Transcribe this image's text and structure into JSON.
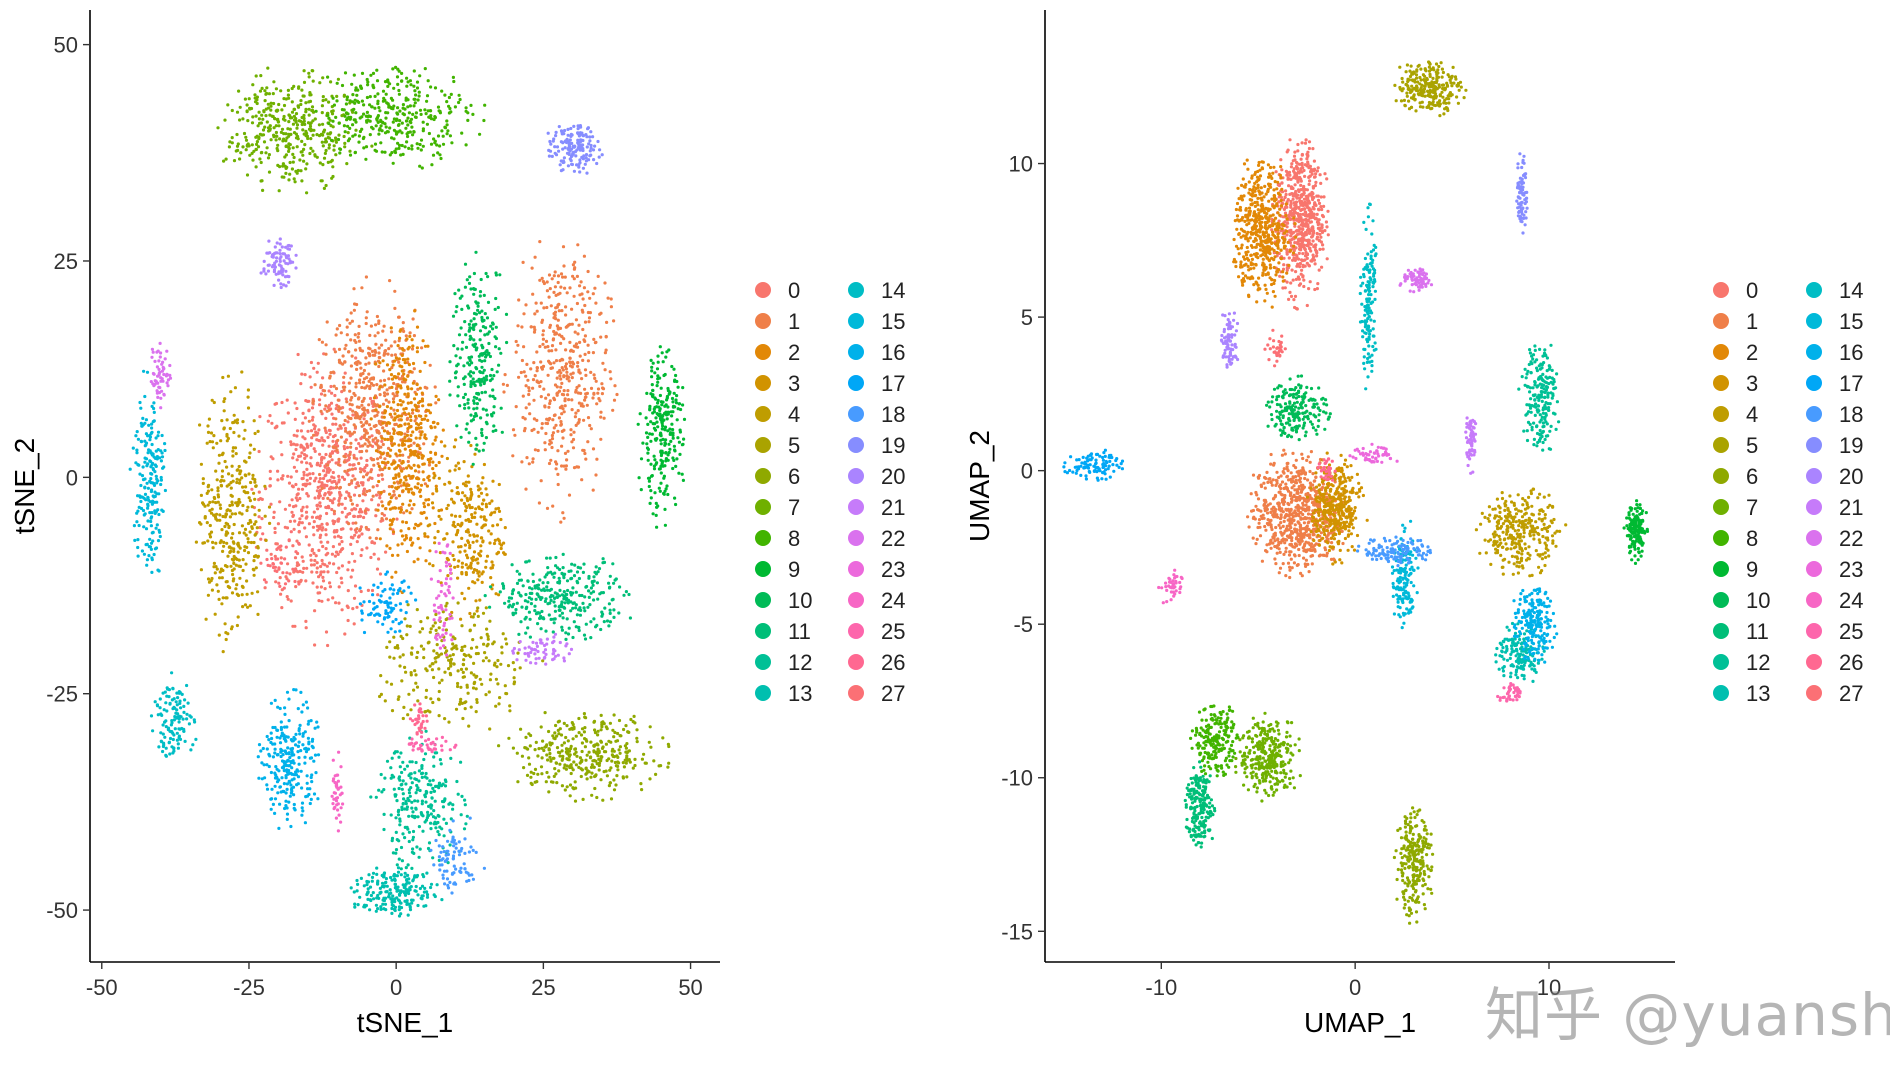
{
  "chart_data": [
    {
      "type": "scatter",
      "name": "tsne",
      "title": "",
      "xlabel": "tSNE_1",
      "ylabel": "tSNE_2",
      "xlim": [
        -52,
        55
      ],
      "ylim": [
        -56,
        54
      ],
      "xticks": [
        -50,
        -25,
        0,
        25,
        50
      ],
      "yticks": [
        -50,
        -25,
        0,
        25,
        50
      ],
      "legend": "right",
      "clusters": [
        {
          "cluster": "0",
          "cx": -12,
          "cy": -2,
          "rx": 12,
          "ry": 16,
          "n": 700
        },
        {
          "cluster": "1",
          "cx": -4,
          "cy": 8,
          "rx": 10,
          "ry": 14,
          "n": 500
        },
        {
          "cluster": "1",
          "cx": 28,
          "cy": 12,
          "rx": 9,
          "ry": 16,
          "n": 450
        },
        {
          "cluster": "2",
          "cx": 2,
          "cy": 4,
          "rx": 6,
          "ry": 16,
          "n": 400
        },
        {
          "cluster": "3",
          "cx": 12,
          "cy": -6,
          "rx": 7,
          "ry": 10,
          "n": 250
        },
        {
          "cluster": "4",
          "cx": -28,
          "cy": -4,
          "rx": 6,
          "ry": 16,
          "n": 350
        },
        {
          "cluster": "5",
          "cx": 10,
          "cy": -22,
          "rx": 14,
          "ry": 8,
          "n": 250
        },
        {
          "cluster": "6",
          "cx": 32,
          "cy": -32,
          "rx": 14,
          "ry": 5,
          "n": 350
        },
        {
          "cluster": "7",
          "cx": -18,
          "cy": 40,
          "rx": 12,
          "ry": 7,
          "n": 400
        },
        {
          "cluster": "8",
          "cx": 0,
          "cy": 42,
          "rx": 14,
          "ry": 6,
          "n": 350
        },
        {
          "cluster": "9",
          "cx": 45,
          "cy": 5,
          "rx": 4,
          "ry": 10,
          "n": 250
        },
        {
          "cluster": "10",
          "cx": 14,
          "cy": 14,
          "rx": 5,
          "ry": 12,
          "n": 250
        },
        {
          "cluster": "11",
          "cx": 28,
          "cy": -14,
          "rx": 12,
          "ry": 5,
          "n": 300
        },
        {
          "cluster": "12",
          "cx": 4,
          "cy": -38,
          "rx": 8,
          "ry": 8,
          "n": 250
        },
        {
          "cluster": "13",
          "cx": 0,
          "cy": -48,
          "rx": 8,
          "ry": 3,
          "n": 200
        },
        {
          "cluster": "14",
          "cx": -38,
          "cy": -28,
          "rx": 4,
          "ry": 5,
          "n": 120
        },
        {
          "cluster": "15",
          "cx": -42,
          "cy": 0,
          "rx": 3,
          "ry": 12,
          "n": 200
        },
        {
          "cluster": "16",
          "cx": -18,
          "cy": -33,
          "rx": 5,
          "ry": 8,
          "n": 250
        },
        {
          "cluster": "17",
          "cx": -2,
          "cy": -15,
          "rx": 5,
          "ry": 4,
          "n": 80
        },
        {
          "cluster": "18",
          "cx": 10,
          "cy": -44,
          "rx": 5,
          "ry": 4,
          "n": 80
        },
        {
          "cluster": "19",
          "cx": 30,
          "cy": 38,
          "rx": 5,
          "ry": 3,
          "n": 150
        },
        {
          "cluster": "20",
          "cx": -20,
          "cy": 25,
          "rx": 3,
          "ry": 3,
          "n": 80
        },
        {
          "cluster": "21",
          "cx": 25,
          "cy": -20,
          "rx": 5,
          "ry": 2,
          "n": 60
        },
        {
          "cluster": "22",
          "cx": -40,
          "cy": 12,
          "rx": 2,
          "ry": 4,
          "n": 60
        },
        {
          "cluster": "23",
          "cx": 8,
          "cy": -14,
          "rx": 2,
          "ry": 8,
          "n": 60
        },
        {
          "cluster": "24",
          "cx": -10,
          "cy": -36,
          "rx": 1,
          "ry": 5,
          "n": 40
        },
        {
          "cluster": "25",
          "cx": 6,
          "cy": -31,
          "rx": 5,
          "ry": 1,
          "n": 40
        },
        {
          "cluster": "26",
          "cx": 4,
          "cy": -28,
          "rx": 2,
          "ry": 2,
          "n": 30
        },
        {
          "cluster": "27",
          "cx": -20,
          "cy": -10,
          "rx": 4,
          "ry": 4,
          "n": 40
        }
      ]
    },
    {
      "type": "scatter",
      "name": "umap",
      "title": "",
      "xlabel": "UMAP_1",
      "ylabel": "UMAP_2",
      "xlim": [
        -16,
        16.5
      ],
      "ylim": [
        -16,
        15
      ],
      "xticks": [
        -10,
        0,
        10
      ],
      "yticks": [
        -15,
        -10,
        -5,
        0,
        5,
        10
      ],
      "legend": "right",
      "clusters": [
        {
          "cluster": "0",
          "cx": -2.8,
          "cy": 8.2,
          "rx": 1.4,
          "ry": 2.7,
          "n": 600
        },
        {
          "cluster": "1",
          "cx": -3.0,
          "cy": -1.4,
          "rx": 2.5,
          "ry": 2.0,
          "n": 700
        },
        {
          "cluster": "2",
          "cx": -4.8,
          "cy": 7.8,
          "rx": 1.6,
          "ry": 2.4,
          "n": 500
        },
        {
          "cluster": "3",
          "cx": -1.0,
          "cy": -1.2,
          "rx": 1.4,
          "ry": 1.7,
          "n": 350
        },
        {
          "cluster": "4",
          "cx": 8.5,
          "cy": -2.0,
          "rx": 2.2,
          "ry": 1.4,
          "n": 300
        },
        {
          "cluster": "5",
          "cx": 3.8,
          "cy": 12.5,
          "rx": 1.8,
          "ry": 0.9,
          "n": 250
        },
        {
          "cluster": "6",
          "cx": 3.0,
          "cy": -12.8,
          "rx": 1.0,
          "ry": 1.8,
          "n": 250
        },
        {
          "cluster": "7",
          "cx": -4.5,
          "cy": -9.3,
          "rx": 1.7,
          "ry": 1.4,
          "n": 300
        },
        {
          "cluster": "8",
          "cx": -7.2,
          "cy": -8.8,
          "rx": 1.2,
          "ry": 1.2,
          "n": 200
        },
        {
          "cluster": "9",
          "cx": 14.5,
          "cy": -2.0,
          "rx": 0.6,
          "ry": 1.0,
          "n": 150
        },
        {
          "cluster": "10",
          "cx": -3.0,
          "cy": 2.0,
          "rx": 1.7,
          "ry": 1.0,
          "n": 200
        },
        {
          "cluster": "11",
          "cx": -8.0,
          "cy": -11.0,
          "rx": 0.8,
          "ry": 1.4,
          "n": 200
        },
        {
          "cluster": "12",
          "cx": 9.5,
          "cy": 2.5,
          "rx": 1.0,
          "ry": 2.0,
          "n": 200
        },
        {
          "cluster": "13",
          "cx": 8.5,
          "cy": -6.0,
          "rx": 1.3,
          "ry": 1.0,
          "n": 150
        },
        {
          "cluster": "14",
          "cx": 0.7,
          "cy": 5.5,
          "rx": 0.4,
          "ry": 3.0,
          "n": 150
        },
        {
          "cluster": "15",
          "cx": 2.5,
          "cy": -3.5,
          "rx": 0.7,
          "ry": 1.6,
          "n": 150
        },
        {
          "cluster": "16",
          "cx": 9.2,
          "cy": -5.0,
          "rx": 1.2,
          "ry": 1.3,
          "n": 200
        },
        {
          "cluster": "17",
          "cx": -13.5,
          "cy": 0.2,
          "rx": 1.5,
          "ry": 0.5,
          "n": 100
        },
        {
          "cluster": "18",
          "cx": 2.2,
          "cy": -2.6,
          "rx": 2.0,
          "ry": 0.5,
          "n": 120
        },
        {
          "cluster": "19",
          "cx": 8.6,
          "cy": 9.0,
          "rx": 0.3,
          "ry": 1.3,
          "n": 80
        },
        {
          "cluster": "20",
          "cx": -6.5,
          "cy": 4.2,
          "rx": 0.5,
          "ry": 1.0,
          "n": 80
        },
        {
          "cluster": "21",
          "cx": 6.0,
          "cy": 1.0,
          "rx": 0.3,
          "ry": 1.0,
          "n": 60
        },
        {
          "cluster": "22",
          "cx": 3.2,
          "cy": 6.2,
          "rx": 0.9,
          "ry": 0.4,
          "n": 70
        },
        {
          "cluster": "23",
          "cx": 1.0,
          "cy": 0.5,
          "rx": 1.2,
          "ry": 0.4,
          "n": 50
        },
        {
          "cluster": "24",
          "cx": -9.5,
          "cy": -3.8,
          "rx": 0.6,
          "ry": 0.6,
          "n": 40
        },
        {
          "cluster": "25",
          "cx": 8.0,
          "cy": -7.3,
          "rx": 0.6,
          "ry": 0.4,
          "n": 40
        },
        {
          "cluster": "26",
          "cx": -1.5,
          "cy": 0.0,
          "rx": 0.5,
          "ry": 0.5,
          "n": 30
        },
        {
          "cluster": "27",
          "cx": -4.0,
          "cy": 4.0,
          "rx": 0.6,
          "ry": 0.6,
          "n": 30
        }
      ]
    }
  ],
  "legend": {
    "entries": [
      "0",
      "1",
      "2",
      "3",
      "4",
      "5",
      "6",
      "7",
      "8",
      "9",
      "10",
      "11",
      "12",
      "13",
      "14",
      "15",
      "16",
      "17",
      "18",
      "19",
      "20",
      "21",
      "22",
      "23",
      "24",
      "25",
      "26",
      "27"
    ],
    "colors": [
      "#F8766D",
      "#EF7F49",
      "#E28807",
      "#D19300",
      "#BF9D00",
      "#AAA300",
      "#8FA900",
      "#6FB000",
      "#41B400",
      "#00B932",
      "#00BB57",
      "#00BE78",
      "#00C096",
      "#00BFAF",
      "#00BDC5",
      "#00B9D9",
      "#00B1EA",
      "#00A7F6",
      "#489BFF",
      "#868DFF",
      "#AA84FF",
      "#C67BFA",
      "#DA72EE",
      "#EC69DC",
      "#F766C5",
      "#FD66AC",
      "#FF6891",
      "#FB7075"
    ]
  },
  "watermark": "知乎 @yuansh"
}
